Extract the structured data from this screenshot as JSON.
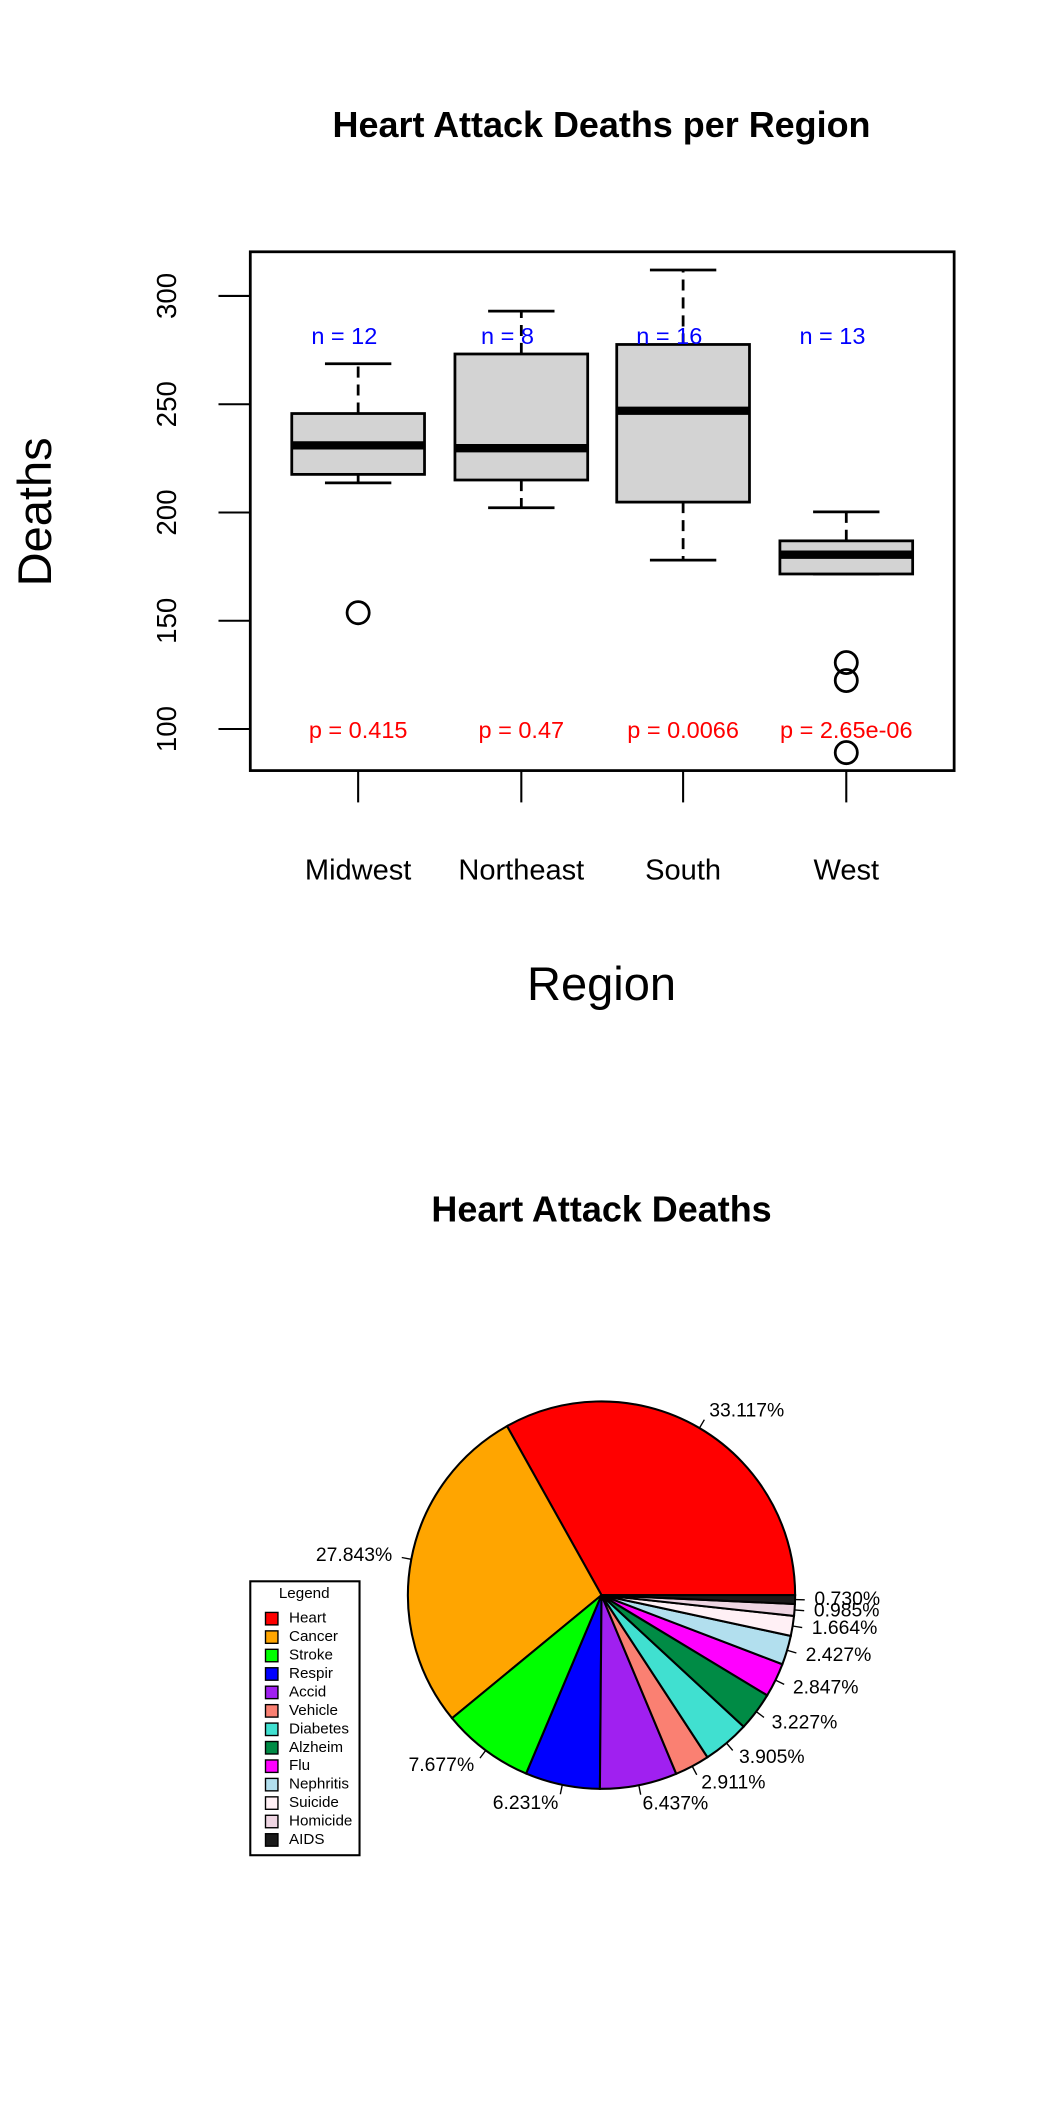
{
  "chart_data": [
    {
      "type": "boxplot",
      "title": "Heart Attack Deaths per Region",
      "x_label": "Region",
      "y_label": "Deaths",
      "categories": [
        "Midwest",
        "Northeast",
        "South",
        "West"
      ],
      "boxes": [
        {
          "whisker_low": 213.7,
          "q1": 217.6,
          "median": 231,
          "q3": 245.7,
          "whisker_high": 268.7,
          "outliers": [
            153.7
          ]
        },
        {
          "whisker_low": 202.2,
          "q1": 215,
          "median": 229.7,
          "q3": 273.2,
          "whisker_high": 293,
          "outliers": []
        },
        {
          "whisker_low": 178,
          "q1": 204.8,
          "median": 247,
          "q3": 277.6,
          "whisker_high": 312,
          "outliers": []
        },
        {
          "whisker_low": 171.6,
          "q1": 171.6,
          "median": 180.5,
          "q3": 186.9,
          "whisker_high": 200.3,
          "outliers": [
            130.7,
            122.4,
            89.1
          ]
        }
      ],
      "box_color": "#d3d3d3",
      "n_labels": [
        "n = 12",
        "n = 8",
        "n = 16",
        "n = 13"
      ],
      "n_color": "#0000ff",
      "p_labels": [
        "p = 0.415",
        "p = 0.47",
        "p = 0.0066",
        "p = 2.65e-06"
      ],
      "p_color": "#ff0000",
      "ylim": [
        80.8,
        320.4
      ],
      "yticks": [
        100,
        150,
        200,
        250,
        300
      ]
    },
    {
      "type": "pie",
      "title": "Heart Attack Deaths",
      "legend_title": "Legend",
      "legend": "left",
      "categories": [
        "Heart",
        "Cancer",
        "Stroke",
        "Respir",
        "Accid",
        "Vehicle",
        "Diabetes",
        "Alzheim",
        "Flu",
        "Nephritis",
        "Suicide",
        "Homicide",
        "AIDS"
      ],
      "values": [
        33.117,
        27.843,
        7.677,
        6.231,
        6.437,
        2.911,
        3.905,
        3.227,
        2.847,
        2.427,
        1.664,
        0.985,
        0.73
      ],
      "value_labels": [
        "33.117%",
        "27.843%",
        "7.677%",
        "6.231%",
        "6.437%",
        "2.911%",
        "3.905%",
        "3.227%",
        "2.847%",
        "2.427%",
        "1.664%",
        "0.985%",
        "0.730%"
      ],
      "colors": [
        "#ff0000",
        "#ffa500",
        "#00ff00",
        "#0000ff",
        "#a020f0",
        "#fa8072",
        "#40e0d0",
        "#008b45",
        "#ff00ff",
        "#b2dfee",
        "#fff0f5",
        "#eed5e2",
        "#1a1a1a"
      ]
    }
  ]
}
